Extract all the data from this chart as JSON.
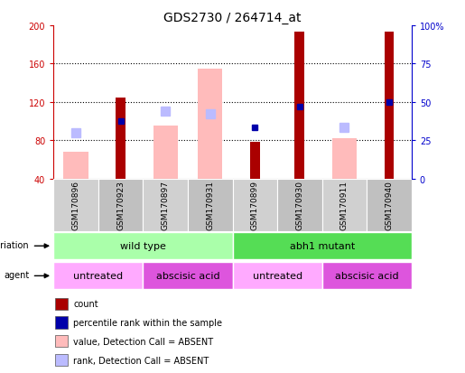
{
  "title": "GDS2730 / 264714_at",
  "samples": [
    "GSM170896",
    "GSM170923",
    "GSM170897",
    "GSM170931",
    "GSM170899",
    "GSM170930",
    "GSM170911",
    "GSM170940"
  ],
  "ylim": [
    40,
    200
  ],
  "yticks": [
    40,
    80,
    120,
    160,
    200
  ],
  "right_ytick_labels": [
    "0",
    "25",
    "50",
    "75",
    "100%"
  ],
  "count_values": [
    null,
    125,
    null,
    null,
    78,
    193,
    null,
    193
  ],
  "count_color": "#aa0000",
  "value_absent": [
    68,
    null,
    95,
    155,
    null,
    null,
    82,
    null
  ],
  "value_absent_color": "#ffbbbb",
  "rank_absent": [
    88,
    null,
    110,
    108,
    null,
    null,
    93,
    null
  ],
  "rank_absent_color": "#bbbbff",
  "percentile_rank": [
    null,
    100,
    null,
    null,
    93,
    115,
    null,
    120
  ],
  "percentile_rank_color": "#0000aa",
  "genotype_groups": [
    {
      "label": "wild type",
      "start": 0,
      "end": 4,
      "color": "#aaffaa"
    },
    {
      "label": "abh1 mutant",
      "start": 4,
      "end": 8,
      "color": "#55dd55"
    }
  ],
  "agent_groups": [
    {
      "label": "untreated",
      "start": 0,
      "end": 2,
      "color": "#ffaaff"
    },
    {
      "label": "abscisic acid",
      "start": 2,
      "end": 4,
      "color": "#dd55dd"
    },
    {
      "label": "untreated",
      "start": 4,
      "end": 6,
      "color": "#ffaaff"
    },
    {
      "label": "abscisic acid",
      "start": 6,
      "end": 8,
      "color": "#dd55dd"
    }
  ],
  "legend_items": [
    {
      "label": "count",
      "color": "#aa0000"
    },
    {
      "label": "percentile rank within the sample",
      "color": "#0000aa"
    },
    {
      "label": "value, Detection Call = ABSENT",
      "color": "#ffbbbb"
    },
    {
      "label": "rank, Detection Call = ABSENT",
      "color": "#bbbbff"
    }
  ],
  "title_fontsize": 10,
  "tick_fontsize": 7,
  "left_axis_color": "#cc0000",
  "right_axis_color": "#0000cc",
  "background_color": "#ffffff"
}
